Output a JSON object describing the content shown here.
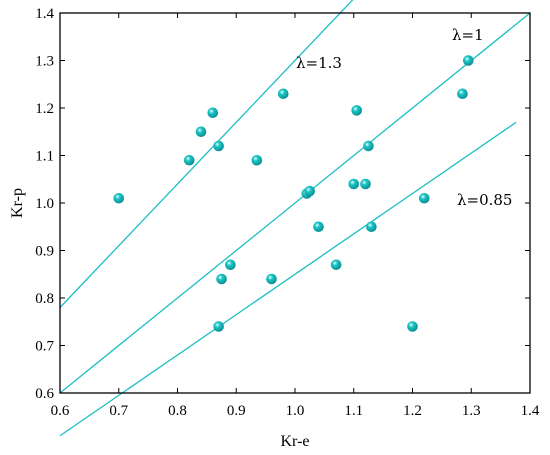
{
  "chart_data": {
    "type": "scatter",
    "xlabel": "Kr-e",
    "ylabel": "Kr-p",
    "xlim": [
      0.6,
      1.4
    ],
    "ylim": [
      0.6,
      1.4
    ],
    "x_ticks": [
      "0.6",
      "0.7",
      "0.8",
      "0.9",
      "1.0",
      "1.1",
      "1.2",
      "1.3",
      "1.4"
    ],
    "y_ticks": [
      "0.6",
      "0.7",
      "0.8",
      "0.9",
      "1.0",
      "1.1",
      "1.2",
      "1.3",
      "1.4"
    ],
    "grid": false,
    "point_color": "#1cc6c6",
    "line_color": "#19bfc4",
    "points": [
      {
        "x": 0.7,
        "y": 1.01
      },
      {
        "x": 0.82,
        "y": 1.09
      },
      {
        "x": 0.84,
        "y": 1.15
      },
      {
        "x": 0.86,
        "y": 1.19
      },
      {
        "x": 0.87,
        "y": 1.12
      },
      {
        "x": 0.87,
        "y": 0.74
      },
      {
        "x": 0.875,
        "y": 0.84
      },
      {
        "x": 0.89,
        "y": 0.87
      },
      {
        "x": 0.935,
        "y": 1.09
      },
      {
        "x": 0.96,
        "y": 0.84
      },
      {
        "x": 0.98,
        "y": 1.23
      },
      {
        "x": 1.02,
        "y": 1.02
      },
      {
        "x": 1.025,
        "y": 1.025
      },
      {
        "x": 1.04,
        "y": 0.95
      },
      {
        "x": 1.07,
        "y": 0.87
      },
      {
        "x": 1.1,
        "y": 1.04
      },
      {
        "x": 1.105,
        "y": 1.195
      },
      {
        "x": 1.12,
        "y": 1.04
      },
      {
        "x": 1.125,
        "y": 1.12
      },
      {
        "x": 1.13,
        "y": 0.95
      },
      {
        "x": 1.2,
        "y": 0.74
      },
      {
        "x": 1.22,
        "y": 1.01
      },
      {
        "x": 1.285,
        "y": 1.23
      },
      {
        "x": 1.295,
        "y": 1.3
      }
    ],
    "lines": [
      {
        "label": "λ=1.3",
        "slope": 1.3,
        "x_end": 1.133
      },
      {
        "label": "λ=1",
        "slope": 1.0,
        "x_end": 1.4
      },
      {
        "label": "λ=0.85",
        "slope": 0.85,
        "x_end": 1.376
      }
    ]
  }
}
